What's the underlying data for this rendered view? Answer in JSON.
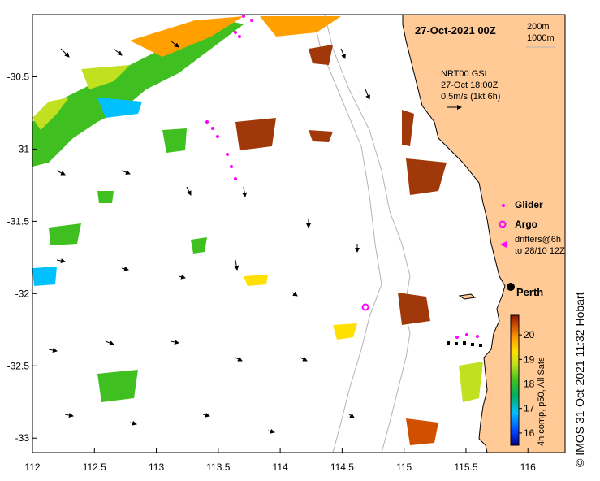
{
  "title": "27-Oct-2021 00Z",
  "isobaths": [
    "200m",
    "1000m"
  ],
  "current_model": {
    "line1": "NRT00 GSL",
    "line2": "27-Oct 18:00Z",
    "line3": "0.5m/s (1kt 6h)"
  },
  "legend": {
    "glider": "Glider",
    "argo": "Argo",
    "drifters_line1": "drifters@6h",
    "drifters_line2": "to 28/10 12Z"
  },
  "city": "Perth",
  "colorbar": {
    "ticks": [
      "16",
      "17",
      "18",
      "19",
      "20"
    ],
    "label": "4h comp, p50, All Sats",
    "range": [
      15.5,
      20.8
    ],
    "colors": [
      "#000080",
      "#0040ff",
      "#00c0ff",
      "#00b060",
      "#40c020",
      "#c0e020",
      "#ffe000",
      "#ffa000",
      "#d05000",
      "#8b1a00"
    ]
  },
  "credit": "© IMOS 31-Oct-2021 11:32 Hobart",
  "axes": {
    "lon_range": [
      112,
      116.3
    ],
    "lat_range": [
      -33.1,
      -30.07
    ],
    "x_ticks": [
      "112",
      "112.5",
      "113",
      "113.5",
      "114",
      "114.5",
      "115",
      "115.5",
      "116"
    ],
    "y_ticks": [
      "-30.5",
      "-31",
      "-31.5",
      "-32",
      "-32.5",
      "-33"
    ]
  },
  "colors": {
    "land": "#ffca96",
    "coast": "#000000",
    "isobath": "#b4b4b4",
    "arrow": "#000000",
    "glider": "#ff00ff",
    "argo": "#ff00ff"
  }
}
